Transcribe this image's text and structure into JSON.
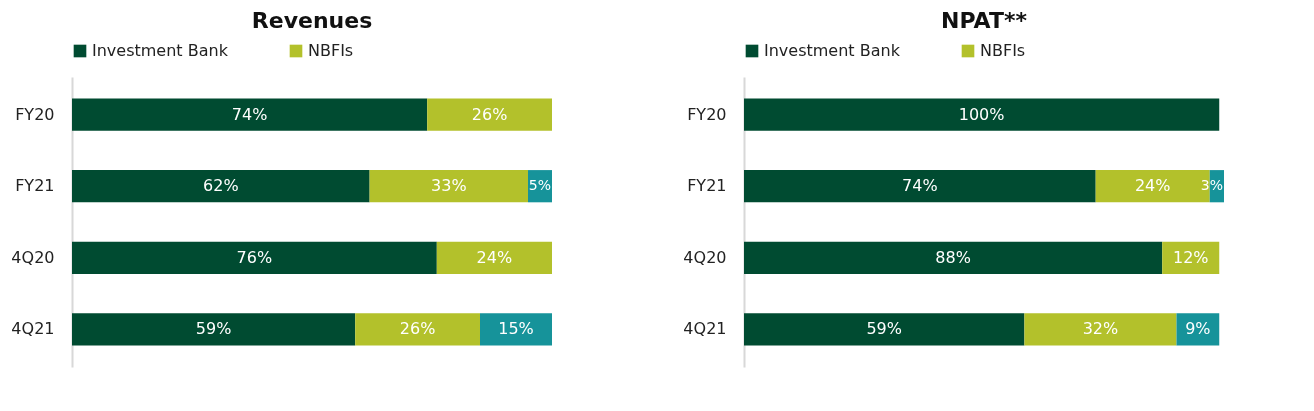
{
  "chart_data": [
    {
      "type": "bar",
      "title": "Revenues",
      "orientation": "horizontal",
      "stacked": true,
      "categories": [
        "FY20",
        "FY21",
        "4Q20",
        "4Q21"
      ],
      "tick_labels": "y",
      "legend": "top",
      "series": [
        {
          "name": "Investment Bank",
          "color": "#004b31",
          "values": [
            74,
            62,
            76,
            59
          ],
          "value_labels": [
            "74%",
            "62%",
            "76%",
            "59%"
          ]
        },
        {
          "name": "NBFIs",
          "color": "#b3c12b",
          "values": [
            26,
            33,
            24,
            26
          ],
          "value_labels": [
            "26%",
            "33%",
            "24%",
            "26%"
          ]
        },
        {
          "color": "#16939a",
          "values": [
            null,
            5,
            null,
            15
          ],
          "value_labels": [
            null,
            "5%",
            null,
            "15%"
          ]
        }
      ]
    },
    {
      "type": "bar",
      "title": "NPAT**",
      "orientation": "horizontal",
      "stacked": true,
      "categories": [
        "FY20",
        "FY21",
        "4Q20",
        "4Q21"
      ],
      "tick_labels": "y",
      "legend": "top",
      "series": [
        {
          "name": "Investment Bank",
          "color": "#004b31",
          "values": [
            100,
            74,
            88,
            59
          ],
          "value_labels": [
            "100%",
            "74%",
            "88%",
            "59%"
          ]
        },
        {
          "name": "NBFIs",
          "color": "#b3c12b",
          "values": [
            null,
            24,
            12,
            32
          ],
          "value_labels": [
            null,
            "24%",
            "12%",
            "32%"
          ]
        },
        {
          "color": "#16939a",
          "values": [
            null,
            3,
            null,
            9
          ],
          "value_labels": [
            null,
            "3%",
            null,
            "9%"
          ]
        }
      ]
    }
  ]
}
